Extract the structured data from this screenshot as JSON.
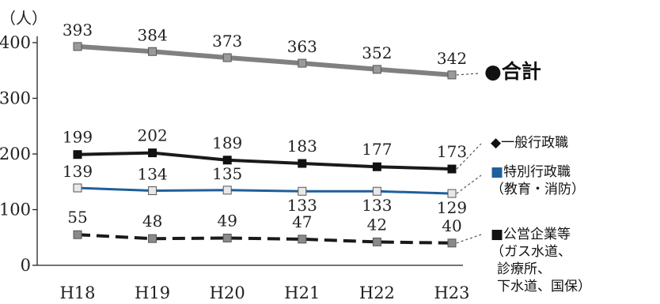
{
  "chart_data": {
    "type": "line",
    "unit_label": "（人）",
    "categories": [
      "H18",
      "H19",
      "H20",
      "H21",
      "H22",
      "H23"
    ],
    "ylim": [
      0,
      400
    ],
    "yticks": [
      0,
      100,
      200,
      300,
      400
    ],
    "grid": false,
    "series": [
      {
        "key": "total",
        "name": "●合計",
        "values": [
          393,
          384,
          373,
          363,
          352,
          342
        ],
        "color": "#808080",
        "style": "solid-thick",
        "marker_color": "#9a9a9a"
      },
      {
        "key": "general",
        "name": "◆一般行政職",
        "values": [
          199,
          202,
          189,
          183,
          177,
          173
        ],
        "color": "#1a1a1a",
        "style": "solid",
        "marker_color": "#111111"
      },
      {
        "key": "special",
        "name": "■特別行政職",
        "name_sub": [
          "（教育・消防）"
        ],
        "values": [
          139,
          134,
          135,
          133,
          133,
          129
        ],
        "color": "#1f5f9a",
        "style": "solid",
        "marker_color": "#e8e8e8"
      },
      {
        "key": "public",
        "name": "■公営企業等",
        "name_sub": [
          "（ガス水道、",
          "診療所、",
          "下水道、国保）"
        ],
        "values": [
          55,
          48,
          49,
          47,
          42,
          40
        ],
        "color": "#1a1a1a",
        "style": "dashed",
        "marker_color": "#8a8a8a"
      }
    ]
  }
}
